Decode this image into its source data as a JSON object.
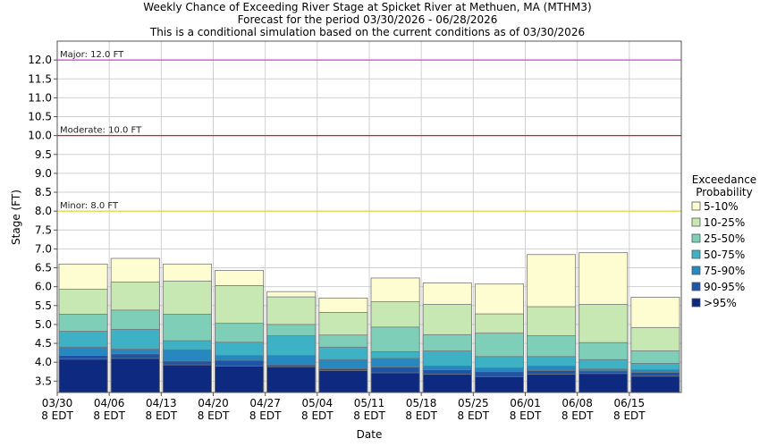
{
  "chart_data": {
    "type": "bar",
    "title_lines": [
      "Weekly Chance of Exceeding River Stage at Spicket River at Methuen, MA (MTHM3)",
      "Forecast for the period 03/30/2026 - 06/28/2026",
      "This is a conditional simulation based on the current conditions as of 03/30/2026"
    ],
    "xlabel": "Date",
    "ylabel": "Stage (FT)",
    "ylim": [
      3.2,
      12.5
    ],
    "yticks": [
      3.5,
      4.0,
      4.5,
      5.0,
      5.5,
      6.0,
      6.5,
      7.0,
      7.5,
      8.0,
      8.5,
      9.0,
      9.5,
      10.0,
      10.5,
      11.0,
      11.5,
      12.0
    ],
    "ytick_labels": [
      "3.5",
      "4.0",
      "4.5",
      "5.0",
      "5.5",
      "6.0",
      "6.5",
      "7.0",
      "7.5",
      "8.0",
      "8.5",
      "9.0",
      "9.5",
      "10.0",
      "10.5",
      "11.0",
      "11.5",
      "12.0"
    ],
    "xtick_labels": [
      {
        "date": "03/30",
        "sub": "8 EDT"
      },
      {
        "date": "04/06",
        "sub": "8 EDT"
      },
      {
        "date": "04/13",
        "sub": "8 EDT"
      },
      {
        "date": "04/20",
        "sub": "8 EDT"
      },
      {
        "date": "04/27",
        "sub": "8 EDT"
      },
      {
        "date": "05/04",
        "sub": "8 EDT"
      },
      {
        "date": "05/11",
        "sub": "8 EDT"
      },
      {
        "date": "05/18",
        "sub": "8 EDT"
      },
      {
        "date": "05/25",
        "sub": "8 EDT"
      },
      {
        "date": "06/01",
        "sub": "8 EDT"
      },
      {
        "date": "06/08",
        "sub": "8 EDT"
      },
      {
        "date": "06/15",
        "sub": "8 EDT"
      }
    ],
    "thresholds": [
      {
        "label": "Major: 12.0 FT",
        "value": 12.0,
        "color": "#cc44cc"
      },
      {
        "label": "Moderate: 10.0 FT",
        "value": 10.0,
        "color": "#cc2222"
      },
      {
        "label": "Minor: 8.0 FT",
        "value": 8.0,
        "color": "#dddd33"
      }
    ],
    "legend": {
      "title_lines": [
        "Exceedance",
        "Probability"
      ],
      "placement": "right"
    },
    "series": [
      {
        "name": ">95%",
        "color": "#0d2a80",
        "values": [
          4.08,
          4.1,
          3.93,
          3.9,
          3.88,
          3.78,
          3.72,
          3.68,
          3.62,
          3.68,
          3.7,
          3.63
        ]
      },
      {
        "name": "90-95%",
        "color": "#1d54a6",
        "values": [
          4.18,
          4.22,
          4.03,
          4.05,
          3.93,
          3.83,
          3.87,
          3.8,
          3.75,
          3.78,
          3.77,
          3.73
        ]
      },
      {
        "name": "75-90%",
        "color": "#2788bf",
        "values": [
          4.4,
          4.35,
          4.33,
          4.18,
          4.18,
          4.07,
          4.1,
          3.9,
          3.85,
          3.9,
          3.82,
          3.8
        ]
      },
      {
        "name": "50-75%",
        "color": "#3fb1c4",
        "values": [
          4.82,
          4.87,
          4.57,
          4.53,
          4.7,
          4.4,
          4.28,
          4.3,
          4.15,
          4.15,
          4.07,
          3.97
        ]
      },
      {
        "name": "25-50%",
        "color": "#7fcfb8",
        "values": [
          5.27,
          5.38,
          5.27,
          5.03,
          5.0,
          4.72,
          4.93,
          4.73,
          4.77,
          4.7,
          4.52,
          4.3
        ]
      },
      {
        "name": "10-25%",
        "color": "#c7e8b3",
        "values": [
          5.93,
          6.12,
          6.15,
          6.03,
          5.73,
          5.32,
          5.6,
          5.53,
          5.28,
          5.47,
          5.53,
          4.92
        ]
      },
      {
        "name": "5-10%",
        "color": "#fdfdd1",
        "values": [
          6.6,
          6.75,
          6.6,
          6.43,
          5.87,
          5.7,
          6.23,
          6.1,
          6.07,
          6.85,
          6.9,
          5.72
        ]
      }
    ]
  }
}
